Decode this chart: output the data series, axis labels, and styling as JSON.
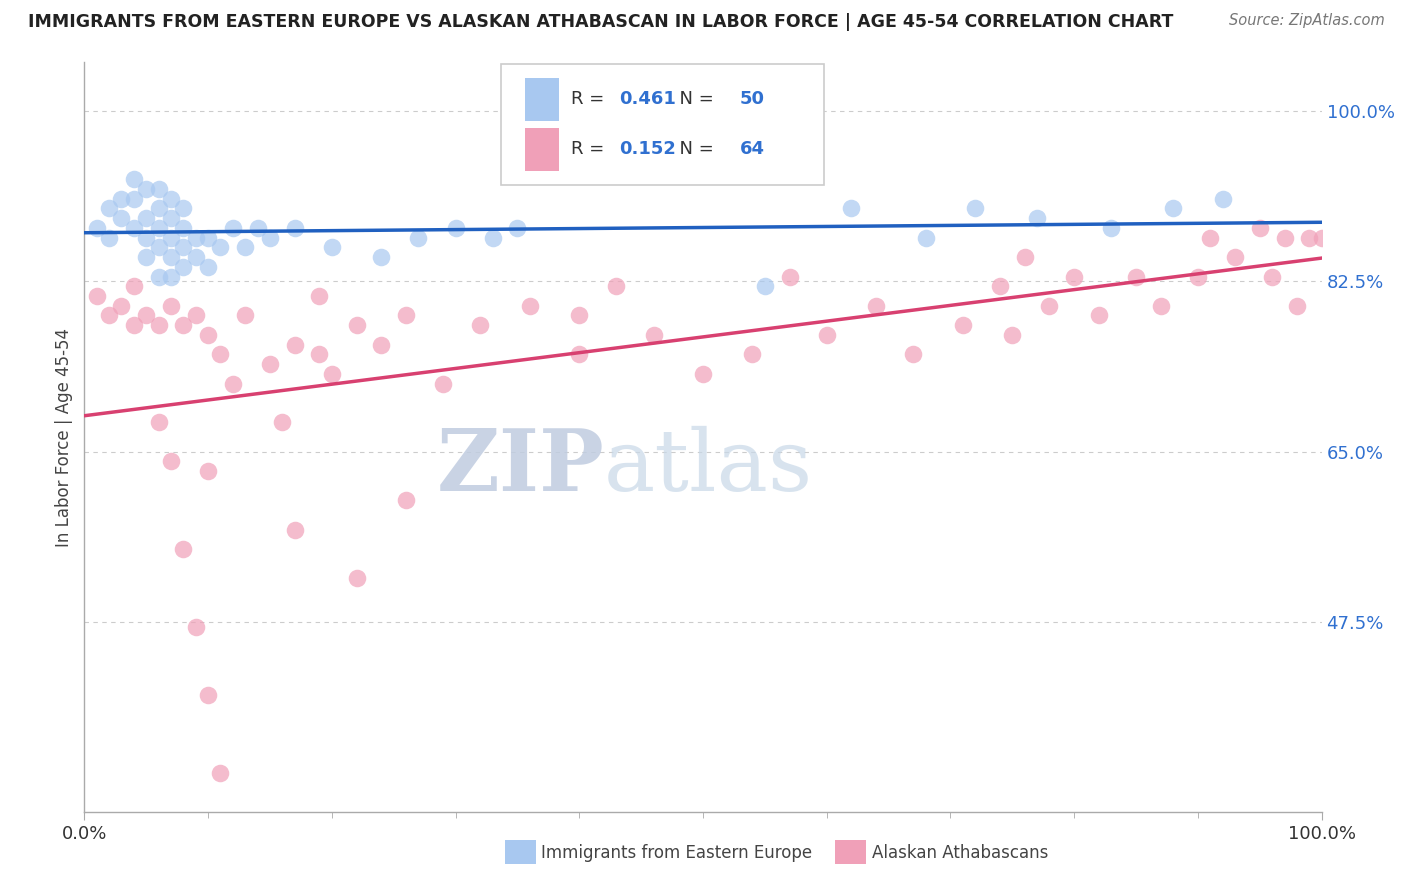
{
  "title": "IMMIGRANTS FROM EASTERN EUROPE VS ALASKAN ATHABASCAN IN LABOR FORCE | AGE 45-54 CORRELATION CHART",
  "source": "Source: ZipAtlas.com",
  "ylabel": "In Labor Force | Age 45-54",
  "legend_label_blue": "Immigrants from Eastern Europe",
  "legend_label_pink": "Alaskan Athabascans",
  "R_blue": 0.461,
  "N_blue": 50,
  "R_pink": 0.152,
  "N_pink": 64,
  "blue_color": "#a8c8f0",
  "pink_color": "#f0a0b8",
  "trend_blue": "#2060c0",
  "trend_pink": "#d84070",
  "label_color": "#3070d0",
  "ytick_vals": [
    0.475,
    0.65,
    0.825,
    1.0
  ],
  "ytick_labels": [
    "47.5%",
    "65.0%",
    "82.5%",
    "100.0%"
  ],
  "xtick_vals": [
    0.0,
    1.0
  ],
  "xtick_labels": [
    "0.0%",
    "100.0%"
  ],
  "xlim": [
    0.0,
    1.0
  ],
  "ylim": [
    0.28,
    1.05
  ],
  "watermark_zip": "ZIP",
  "watermark_atlas": "atlas",
  "blue_x": [
    0.01,
    0.02,
    0.02,
    0.03,
    0.03,
    0.04,
    0.04,
    0.04,
    0.05,
    0.05,
    0.05,
    0.05,
    0.06,
    0.06,
    0.06,
    0.06,
    0.06,
    0.07,
    0.07,
    0.07,
    0.07,
    0.07,
    0.08,
    0.08,
    0.08,
    0.08,
    0.09,
    0.09,
    0.1,
    0.1,
    0.11,
    0.12,
    0.13,
    0.14,
    0.15,
    0.17,
    0.2,
    0.24,
    0.27,
    0.3,
    0.33,
    0.35,
    0.55,
    0.62,
    0.68,
    0.72,
    0.77,
    0.83,
    0.88,
    0.92
  ],
  "blue_y": [
    0.88,
    0.87,
    0.9,
    0.91,
    0.89,
    0.88,
    0.91,
    0.93,
    0.85,
    0.87,
    0.89,
    0.92,
    0.83,
    0.86,
    0.88,
    0.9,
    0.92,
    0.83,
    0.85,
    0.87,
    0.89,
    0.91,
    0.84,
    0.86,
    0.88,
    0.9,
    0.85,
    0.87,
    0.84,
    0.87,
    0.86,
    0.88,
    0.86,
    0.88,
    0.87,
    0.88,
    0.86,
    0.85,
    0.87,
    0.88,
    0.87,
    0.88,
    0.82,
    0.9,
    0.87,
    0.9,
    0.89,
    0.88,
    0.9,
    0.91
  ],
  "pink_x": [
    0.01,
    0.02,
    0.03,
    0.04,
    0.04,
    0.05,
    0.06,
    0.07,
    0.08,
    0.09,
    0.1,
    0.11,
    0.12,
    0.13,
    0.15,
    0.16,
    0.17,
    0.19,
    0.19,
    0.2,
    0.22,
    0.24,
    0.26,
    0.29,
    0.32,
    0.36,
    0.4,
    0.4,
    0.43,
    0.46,
    0.5,
    0.54,
    0.57,
    0.6,
    0.64,
    0.67,
    0.71,
    0.74,
    0.75,
    0.76,
    0.78,
    0.8,
    0.82,
    0.85,
    0.87,
    0.9,
    0.91,
    0.93,
    0.95,
    0.96,
    0.97,
    0.98,
    0.99,
    1.0,
    0.1,
    0.17,
    0.22,
    0.26,
    0.06,
    0.07,
    0.08,
    0.09,
    0.1,
    0.11
  ],
  "pink_y": [
    0.81,
    0.79,
    0.8,
    0.78,
    0.82,
    0.79,
    0.78,
    0.8,
    0.78,
    0.79,
    0.77,
    0.75,
    0.72,
    0.79,
    0.74,
    0.68,
    0.76,
    0.75,
    0.81,
    0.73,
    0.78,
    0.76,
    0.79,
    0.72,
    0.78,
    0.8,
    0.79,
    0.75,
    0.82,
    0.77,
    0.73,
    0.75,
    0.83,
    0.77,
    0.8,
    0.75,
    0.78,
    0.82,
    0.77,
    0.85,
    0.8,
    0.83,
    0.79,
    0.83,
    0.8,
    0.83,
    0.87,
    0.85,
    0.88,
    0.83,
    0.87,
    0.8,
    0.87,
    0.87,
    0.63,
    0.57,
    0.52,
    0.6,
    0.68,
    0.64,
    0.55,
    0.47,
    0.4,
    0.32
  ]
}
